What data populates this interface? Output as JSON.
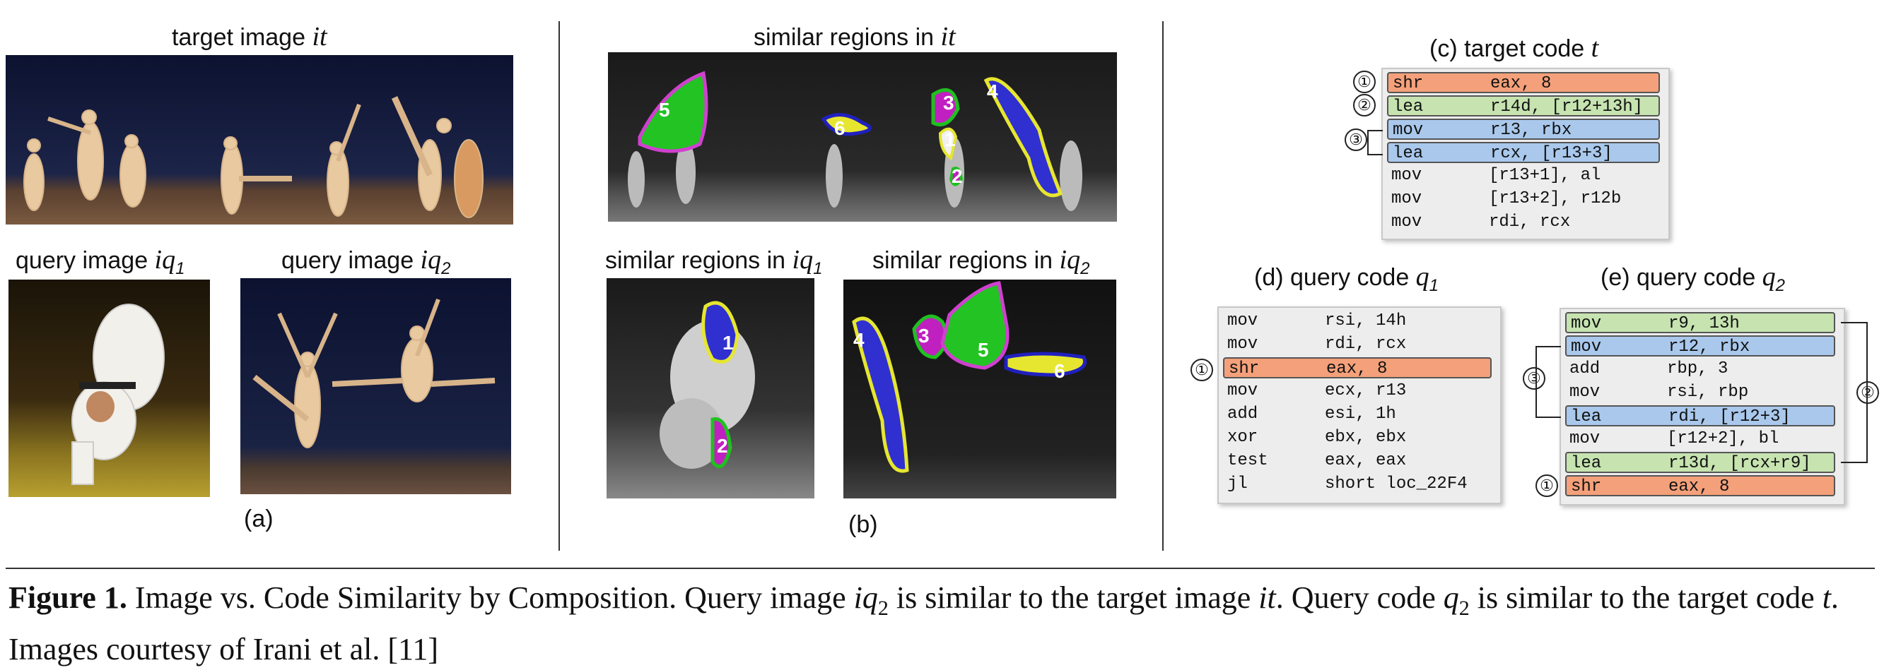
{
  "panel_a": {
    "target_title": "target image ",
    "target_var": "it",
    "q1_title": "query image ",
    "q1_var": "iq",
    "q1_sub": "1",
    "q2_title": "query image ",
    "q2_var": "iq",
    "q2_sub": "2",
    "label": "(a)"
  },
  "panel_b": {
    "top_title": "similar regions in ",
    "top_var": "it",
    "q1_title": "similar regions in ",
    "q1_var": "iq",
    "q1_sub": "1",
    "q2_title": "similar regions in ",
    "q2_var": "iq",
    "q2_sub": "2",
    "label": "(b)",
    "region_numbers_top": [
      "5",
      "6",
      "3",
      "1",
      "2",
      "4"
    ],
    "region_numbers_q1": [
      "1",
      "2"
    ],
    "region_numbers_q2": [
      "4",
      "3",
      "5",
      "6"
    ]
  },
  "panel_c": {
    "title": "(c) target code ",
    "var": "t",
    "rows": [
      {
        "op": "shr",
        "args": "eax, 8",
        "color": "#f4a07a"
      },
      {
        "op": "lea",
        "args": "r14d, [r12+13h]",
        "color": "#c6e3b0"
      },
      {
        "op": "mov",
        "args": "r13, rbx",
        "color": "#a9c8ec"
      },
      {
        "op": "lea",
        "args": "rcx, [r13+3]",
        "color": "#a9c8ec"
      },
      {
        "op": "mov",
        "args": "[r13+1], al",
        "color": ""
      },
      {
        "op": "mov",
        "args": "[r13+2], r12b",
        "color": ""
      },
      {
        "op": "mov",
        "args": "rdi, rcx",
        "color": ""
      }
    ],
    "markers": [
      "①",
      "②",
      "③"
    ]
  },
  "panel_d": {
    "title": "(d) query code ",
    "var": "q",
    "sub": "1",
    "rows": [
      {
        "op": "mov",
        "args": "rsi, 14h",
        "color": ""
      },
      {
        "op": "mov",
        "args": "rdi, rcx",
        "color": ""
      },
      {
        "op": "shr",
        "args": "eax, 8",
        "color": "#f4a07a"
      },
      {
        "op": "mov",
        "args": "ecx, r13",
        "color": ""
      },
      {
        "op": "add",
        "args": "esi, 1h",
        "color": ""
      },
      {
        "op": "xor",
        "args": "ebx, ebx",
        "color": ""
      },
      {
        "op": "test",
        "args": "eax, eax",
        "color": ""
      },
      {
        "op": "jl",
        "args": "short loc_22F4",
        "color": ""
      }
    ],
    "markers": [
      "①"
    ]
  },
  "panel_e": {
    "title": "(e) query code ",
    "var": "q",
    "sub": "2",
    "rows": [
      {
        "op": "mov",
        "args": "r9, 13h",
        "color": "#c6e3b0"
      },
      {
        "op": "mov",
        "args": "r12, rbx",
        "color": "#a9c8ec"
      },
      {
        "op": "add",
        "args": "rbp, 3",
        "color": ""
      },
      {
        "op": "mov",
        "args": "rsi, rbp",
        "color": ""
      },
      {
        "op": "lea",
        "args": "rdi, [r12+3]",
        "color": "#a9c8ec"
      },
      {
        "op": "mov",
        "args": "[r12+2], bl",
        "color": ""
      },
      {
        "op": "lea",
        "args": "r13d, [rcx+r9]",
        "color": "#c6e3b0"
      },
      {
        "op": "shr",
        "args": "eax, 8",
        "color": "#f4a07a"
      }
    ],
    "markers": [
      "③",
      "②",
      "①"
    ]
  },
  "caption": {
    "fig": "Figure 1.",
    "text1": " Image vs. Code Similarity by Composition. Query image ",
    "v1": "iq",
    "s1": "2",
    "text2": " is similar to the target image ",
    "v2": "it",
    "text3": ". Query code ",
    "v3": "q",
    "s3": "2",
    "text4": " is similar to the target code ",
    "v4": "t",
    "text5": ". Images courtesy of Irani et al. [11]"
  },
  "colors": {
    "orange": "#f4a07a",
    "green": "#c6e3b0",
    "blue": "#a9c8ec",
    "stage_dark": "#15182e",
    "stage_floor": "#6b4e3a"
  }
}
